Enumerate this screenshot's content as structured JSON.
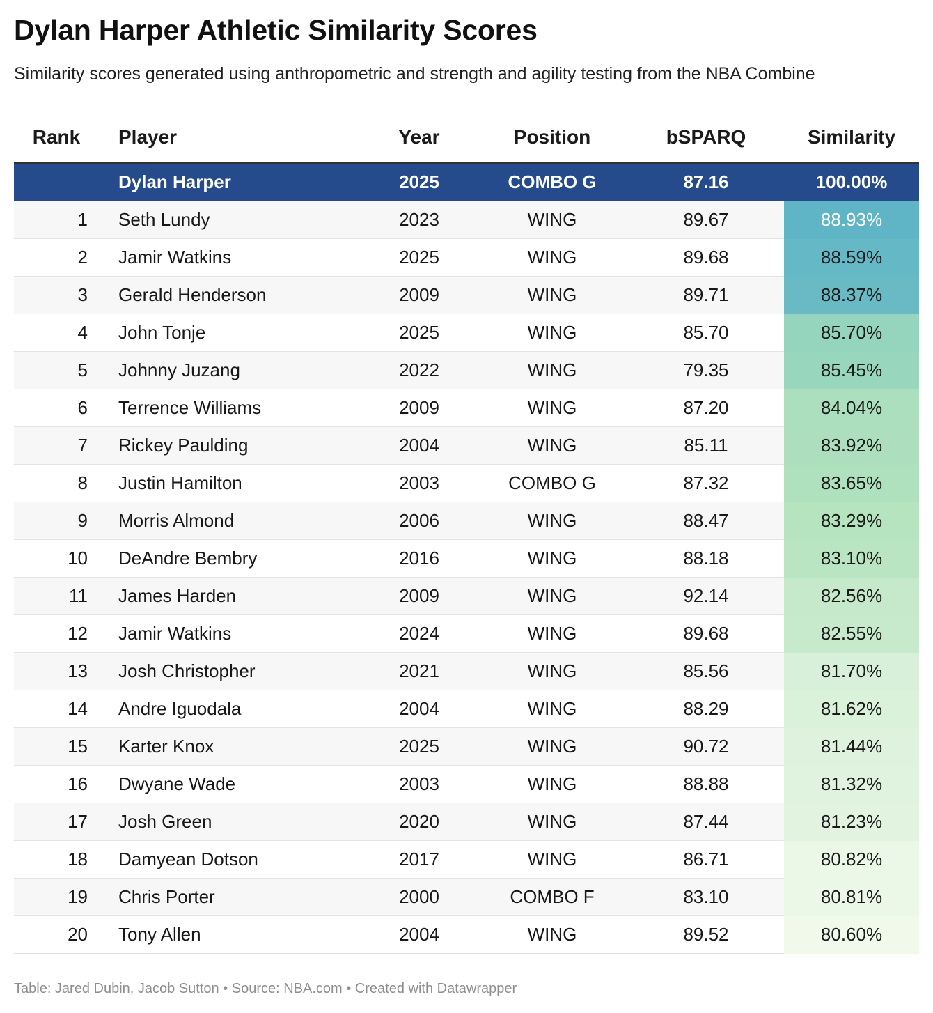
{
  "title": "Dylan Harper Athletic Similarity Scores",
  "subtitle": "Similarity scores generated using anthropometric and strength and agility testing from the NBA Combine",
  "footer": "Table: Jared Dubin, Jacob Sutton • Source: NBA.com • Created with Datawrapper",
  "colors": {
    "highlight_row": "#264b8c",
    "sim_scale": [
      "#5fb4c6",
      "#8fd1bd",
      "#b4e3be",
      "#f0f9ea"
    ]
  },
  "chart_data": {
    "type": "table",
    "title": "Dylan Harper Athletic Similarity Scores",
    "columns": [
      "Rank",
      "Player",
      "Year",
      "Position",
      "bSPARQ",
      "Similarity"
    ],
    "highlight": {
      "rank": "",
      "player": "Dylan Harper",
      "year": "2025",
      "position": "COMBO G",
      "bsparq": "87.16",
      "similarity": "100.00%"
    },
    "rows": [
      {
        "rank": "1",
        "player": "Seth Lundy",
        "year": "2023",
        "position": "WING",
        "bsparq": "89.67",
        "similarity": "88.93%"
      },
      {
        "rank": "2",
        "player": "Jamir Watkins",
        "year": "2025",
        "position": "WING",
        "bsparq": "89.68",
        "similarity": "88.59%"
      },
      {
        "rank": "3",
        "player": "Gerald Henderson",
        "year": "2009",
        "position": "WING",
        "bsparq": "89.71",
        "similarity": "88.37%"
      },
      {
        "rank": "4",
        "player": "John Tonje",
        "year": "2025",
        "position": "WING",
        "bsparq": "85.70",
        "similarity": "85.70%"
      },
      {
        "rank": "5",
        "player": "Johnny Juzang",
        "year": "2022",
        "position": "WING",
        "bsparq": "79.35",
        "similarity": "85.45%"
      },
      {
        "rank": "6",
        "player": "Terrence Williams",
        "year": "2009",
        "position": "WING",
        "bsparq": "87.20",
        "similarity": "84.04%"
      },
      {
        "rank": "7",
        "player": "Rickey Paulding",
        "year": "2004",
        "position": "WING",
        "bsparq": "85.11",
        "similarity": "83.92%"
      },
      {
        "rank": "8",
        "player": "Justin Hamilton",
        "year": "2003",
        "position": "COMBO G",
        "bsparq": "87.32",
        "similarity": "83.65%"
      },
      {
        "rank": "9",
        "player": "Morris Almond",
        "year": "2006",
        "position": "WING",
        "bsparq": "88.47",
        "similarity": "83.29%"
      },
      {
        "rank": "10",
        "player": "DeAndre Bembry",
        "year": "2016",
        "position": "WING",
        "bsparq": "88.18",
        "similarity": "83.10%"
      },
      {
        "rank": "11",
        "player": "James Harden",
        "year": "2009",
        "position": "WING",
        "bsparq": "92.14",
        "similarity": "82.56%"
      },
      {
        "rank": "12",
        "player": "Jamir Watkins",
        "year": "2024",
        "position": "WING",
        "bsparq": "89.68",
        "similarity": "82.55%"
      },
      {
        "rank": "13",
        "player": "Josh Christopher",
        "year": "2021",
        "position": "WING",
        "bsparq": "85.56",
        "similarity": "81.70%"
      },
      {
        "rank": "14",
        "player": "Andre Iguodala",
        "year": "2004",
        "position": "WING",
        "bsparq": "88.29",
        "similarity": "81.62%"
      },
      {
        "rank": "15",
        "player": "Karter Knox",
        "year": "2025",
        "position": "WING",
        "bsparq": "90.72",
        "similarity": "81.44%"
      },
      {
        "rank": "16",
        "player": "Dwyane Wade",
        "year": "2003",
        "position": "WING",
        "bsparq": "88.88",
        "similarity": "81.32%"
      },
      {
        "rank": "17",
        "player": "Josh Green",
        "year": "2020",
        "position": "WING",
        "bsparq": "87.44",
        "similarity": "81.23%"
      },
      {
        "rank": "18",
        "player": "Damyean Dotson",
        "year": "2017",
        "position": "WING",
        "bsparq": "86.71",
        "similarity": "80.82%"
      },
      {
        "rank": "19",
        "player": "Chris Porter",
        "year": "2000",
        "position": "COMBO F",
        "bsparq": "83.10",
        "similarity": "80.81%"
      },
      {
        "rank": "20",
        "player": "Tony Allen",
        "year": "2004",
        "position": "WING",
        "bsparq": "89.52",
        "similarity": "80.60%"
      }
    ]
  }
}
